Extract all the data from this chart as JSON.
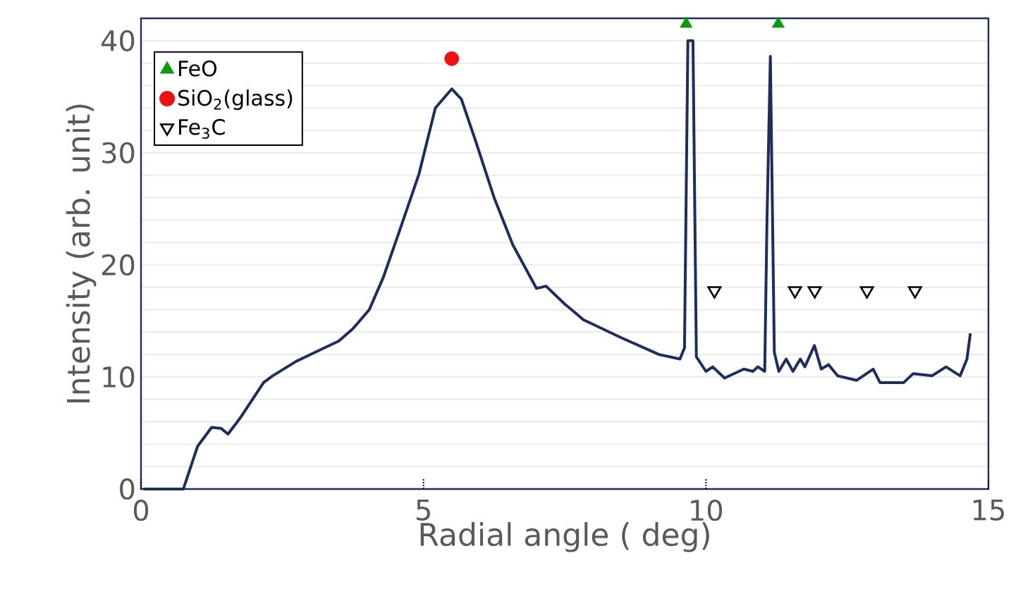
{
  "chart_data": {
    "type": "line",
    "xlabel": "Radial angle ( deg)",
    "ylabel": "Intensity (arb. unit)",
    "xlim": [
      0,
      15
    ],
    "xticks": [
      0,
      5,
      10,
      15
    ],
    "ylim": [
      0,
      42
    ],
    "yticks": [
      0,
      {
        "value": 2,
        "label": null
      },
      {
        "value": 4,
        "label": null
      },
      {
        "value": 6,
        "label": null
      },
      {
        "value": 8,
        "label": null
      },
      10,
      {
        "value": 12,
        "label": null
      },
      {
        "value": 14,
        "label": null
      },
      {
        "value": 16,
        "label": null
      },
      {
        "value": 18,
        "label": null
      },
      20,
      {
        "value": 22,
        "label": null
      },
      {
        "value": 24,
        "label": null
      },
      {
        "value": 26,
        "label": null
      },
      {
        "value": 28,
        "label": null
      },
      30,
      {
        "value": 32,
        "label": null
      },
      {
        "value": 34,
        "label": null
      },
      {
        "value": 36,
        "label": null
      },
      {
        "value": 38,
        "label": null
      },
      40
    ],
    "grid": "y",
    "legend": "top left",
    "series": [
      {
        "color": "#1f2d5c",
        "line_style": "solid",
        "marker": "none",
        "x": [
          0.04,
          0.75,
          1.0,
          1.25,
          1.42,
          1.54,
          1.75,
          2.17,
          2.33,
          2.75,
          3.08,
          3.5,
          3.75,
          4.04,
          4.29,
          4.58,
          4.92,
          5.21,
          5.5,
          5.67,
          5.92,
          6.25,
          6.58,
          7.0,
          7.17,
          7.5,
          7.67,
          7.83,
          8.5,
          9.17,
          9.54,
          9.62,
          9.68,
          9.77,
          9.83,
          10.0,
          10.12,
          10.33,
          10.67,
          10.83,
          10.92,
          11.04,
          11.08,
          11.14,
          11.21,
          11.29,
          11.42,
          11.54,
          11.67,
          11.75,
          11.92,
          12.04,
          12.17,
          12.33,
          12.67,
          12.96,
          13.08,
          13.5,
          13.67,
          14.0,
          14.25,
          14.5,
          14.62,
          14.68
        ],
        "values": [
          0,
          0,
          3.8,
          5.5,
          5.4,
          4.9,
          6.3,
          9.5,
          10.1,
          11.4,
          12.2,
          13.2,
          14.3,
          16.0,
          18.9,
          23.1,
          28.1,
          34.0,
          35.7,
          34.8,
          31.1,
          26.0,
          21.8,
          17.9,
          18.1,
          16.5,
          15.8,
          15.1,
          13.5,
          12.0,
          11.6,
          12.6,
          40,
          40,
          11.8,
          10.5,
          10.9,
          9.9,
          10.7,
          10.5,
          10.9,
          10.5,
          23.9,
          38.6,
          12.2,
          10.5,
          11.6,
          10.5,
          11.6,
          10.9,
          12.8,
          10.7,
          11.1,
          10.1,
          9.7,
          10.7,
          9.5,
          9.5,
          10.3,
          10.1,
          10.9,
          10.1,
          11.6,
          13.9
        ]
      },
      {
        "type": "scatter",
        "name": "FeO",
        "color": "#109a10",
        "marker": "triangle",
        "x": [
          9.65,
          11.28
        ],
        "values": [
          41.5,
          41.5
        ]
      },
      {
        "type": "scatter",
        "name": "SiO$_{2}$(glass)",
        "color": "#ee1111",
        "marker": "circle",
        "x": [
          5.5
        ],
        "values": [
          38.4
        ]
      },
      {
        "type": "scatter",
        "name": "Fe$_{3}$C",
        "color": "#000000",
        "marker": "triangle-down",
        "x": [
          10.15,
          11.575,
          11.925,
          12.85,
          13.7
        ],
        "values": [
          17.7,
          17.7,
          17.7,
          17.7,
          17.7
        ]
      }
    ]
  }
}
